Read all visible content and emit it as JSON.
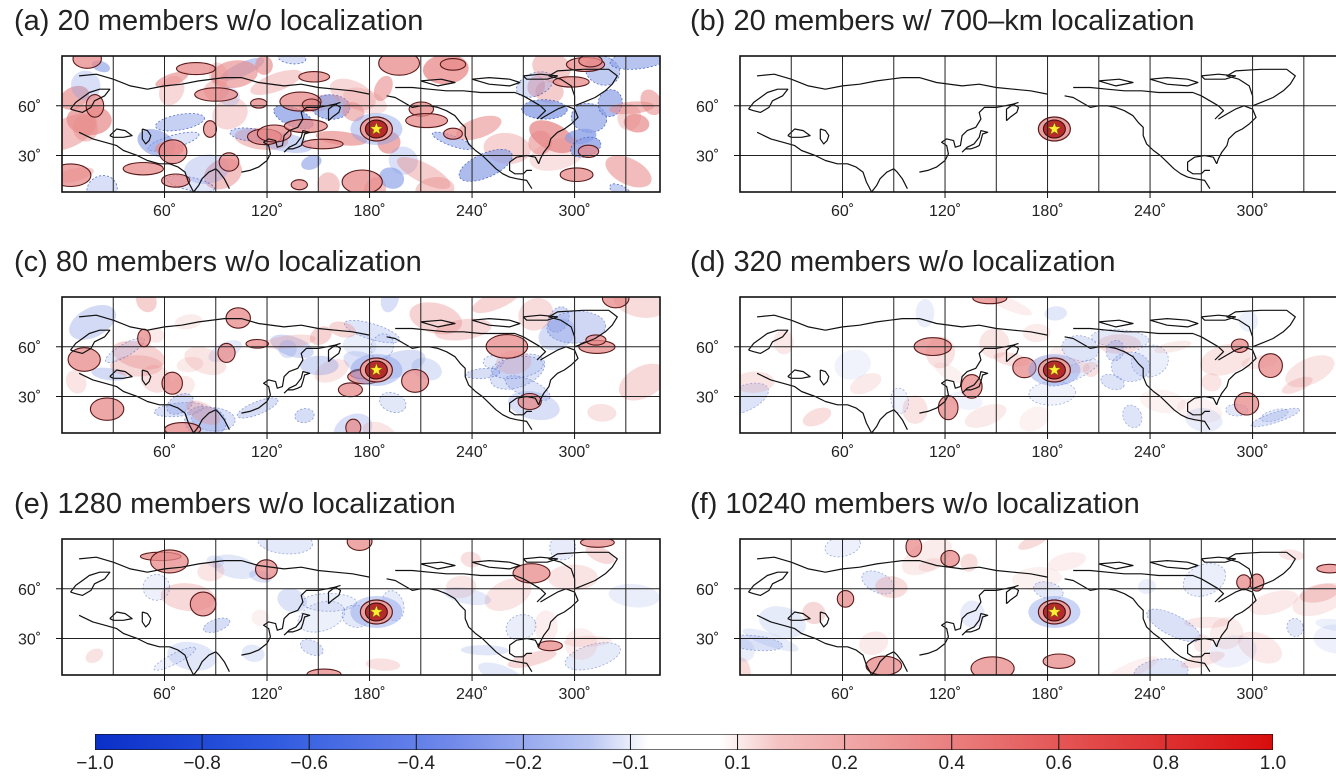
{
  "panels": [
    {
      "id": "a",
      "title": "(a) 20 members w/o localization"
    },
    {
      "id": "b",
      "title": "(b) 20 members w/ 700–km localization"
    },
    {
      "id": "c",
      "title": "(c) 80 members w/o localization"
    },
    {
      "id": "d",
      "title": "(d) 320 members w/o localization"
    },
    {
      "id": "e",
      "title": "(e) 1280 members w/o localization"
    },
    {
      "id": "f",
      "title": "(f) 10240 members w/o localization"
    }
  ],
  "axes": {
    "lat_labels": [
      "60˚",
      "30˚"
    ],
    "lon_labels": [
      "60˚",
      "120˚",
      "180˚",
      "240˚",
      "300˚"
    ]
  },
  "colorbar": {
    "tick_labels": [
      "−1.0",
      "−0.8",
      "−0.6",
      "−0.4",
      "−0.2",
      "−0.1",
      "0.1",
      "0.2",
      "0.4",
      "0.6",
      "0.8",
      "1.0"
    ],
    "colors": {
      "negative": "#1133cc",
      "positive": "#dd1111",
      "neutral": "#ffffff"
    }
  },
  "colors": {
    "positive_fill": "#e88a8a",
    "negative_fill": "#8a9fe6",
    "center_fill": "#b52a2a",
    "star": "#ffee33",
    "coast": "#111111"
  }
}
